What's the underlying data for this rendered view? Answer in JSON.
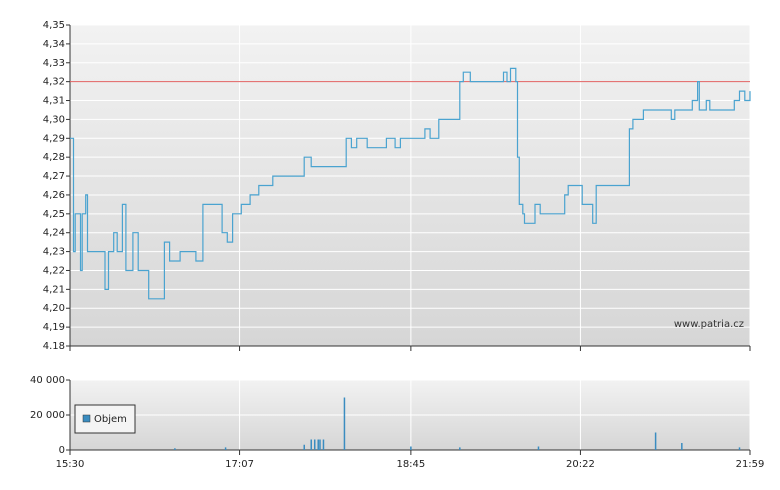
{
  "chart_data": [
    {
      "type": "line",
      "x": [
        "15:30",
        "15:32",
        "15:33",
        "15:36",
        "15:37",
        "15:39",
        "15:40",
        "15:47",
        "15:50",
        "15:52",
        "15:55",
        "15:57",
        "16:00",
        "16:02",
        "16:06",
        "16:09",
        "16:13",
        "16:15",
        "16:21",
        "16:24",
        "16:27",
        "16:33",
        "16:37",
        "16:42",
        "16:46",
        "16:53",
        "16:57",
        "17:00",
        "17:03",
        "17:08",
        "17:13",
        "17:18",
        "17:26",
        "17:42",
        "17:44",
        "17:48",
        "18:06",
        "18:08",
        "18:11",
        "18:14",
        "18:20",
        "18:27",
        "18:31",
        "18:36",
        "18:39",
        "18:53",
        "18:56",
        "19:01",
        "19:11",
        "19:13",
        "19:15",
        "19:19",
        "19:36",
        "19:38",
        "19:40",
        "19:42",
        "19:45",
        "19:46",
        "19:47",
        "19:49",
        "19:50",
        "19:54",
        "19:56",
        "19:59",
        "20:13",
        "20:15",
        "20:22",
        "20:23",
        "20:27",
        "20:29",
        "20:31",
        "20:49",
        "20:50",
        "20:52",
        "20:56",
        "20:58",
        "21:05",
        "21:10",
        "21:14",
        "21:16",
        "21:25",
        "21:26",
        "21:29",
        "21:30",
        "21:34",
        "21:36",
        "21:50",
        "21:53",
        "21:56",
        "21:59"
      ],
      "values": [
        4.29,
        4.23,
        4.25,
        4.22,
        4.25,
        4.26,
        4.23,
        4.23,
        4.21,
        4.23,
        4.24,
        4.23,
        4.255,
        4.22,
        4.24,
        4.22,
        4.22,
        4.205,
        4.205,
        4.235,
        4.225,
        4.23,
        4.23,
        4.225,
        4.255,
        4.255,
        4.24,
        4.235,
        4.25,
        4.255,
        4.26,
        4.265,
        4.27,
        4.27,
        4.28,
        4.275,
        4.275,
        4.29,
        4.285,
        4.29,
        4.285,
        4.285,
        4.29,
        4.285,
        4.29,
        4.295,
        4.29,
        4.3,
        4.3,
        4.32,
        4.325,
        4.32,
        4.32,
        4.325,
        4.32,
        4.327,
        4.32,
        4.28,
        4.255,
        4.25,
        4.245,
        4.245,
        4.255,
        4.25,
        4.26,
        4.265,
        4.265,
        4.255,
        4.255,
        4.245,
        4.265,
        4.265,
        4.295,
        4.3,
        4.3,
        4.305,
        4.305,
        4.305,
        4.3,
        4.305,
        4.305,
        4.31,
        4.32,
        4.305,
        4.31,
        4.305,
        4.31,
        4.315,
        4.31,
        4.315
      ],
      "color": "#4aa3d0",
      "reference_line": {
        "value": 4.32,
        "color": "#e06060"
      },
      "xlim": [
        "15:30",
        "21:59"
      ],
      "xticks": [
        "15:30",
        "17:07",
        "18:45",
        "20:22",
        "21:59"
      ],
      "ylim": [
        4.18,
        4.35
      ],
      "yticks": [
        {
          "value": 4.18,
          "label": "4.18"
        },
        {
          "value": 4.19,
          "label": "4,19"
        },
        {
          "value": 4.2,
          "label": "4,20"
        },
        {
          "value": 4.21,
          "label": "4,21"
        },
        {
          "value": 4.22,
          "label": "4,22"
        },
        {
          "value": 4.23,
          "label": "4,23"
        },
        {
          "value": 4.24,
          "label": "4,24"
        },
        {
          "value": 4.25,
          "label": "4,25"
        },
        {
          "value": 4.26,
          "label": "4,26"
        },
        {
          "value": 4.27,
          "label": "4,27"
        },
        {
          "value": 4.28,
          "label": "4,28"
        },
        {
          "value": 4.29,
          "label": "4,29"
        },
        {
          "value": 4.3,
          "label": "4,30"
        },
        {
          "value": 4.31,
          "label": "4,31"
        },
        {
          "value": 4.32,
          "label": "4,32"
        },
        {
          "value": 4.33,
          "label": "4,33"
        },
        {
          "value": 4.34,
          "label": "4,34"
        },
        {
          "value": 4.35,
          "label": "4,35"
        }
      ],
      "grid": true,
      "watermark": "www.patria.cz"
    },
    {
      "type": "bar",
      "x": [
        "16:30",
        "16:59",
        "17:44",
        "17:48",
        "17:50",
        "17:52",
        "17:53",
        "17:55",
        "18:07",
        "18:45",
        "19:13",
        "19:58",
        "21:05",
        "21:20",
        "21:53"
      ],
      "series": [
        {
          "name": "Objem",
          "color": "#3a8cc0",
          "values": [
            1000,
            1500,
            3000,
            6000,
            6000,
            6000,
            6000,
            6000,
            30000,
            2000,
            1500,
            2000,
            10000,
            4000,
            1500
          ]
        }
      ],
      "xlim": [
        "15:30",
        "21:59"
      ],
      "xticks": [
        "15:30",
        "17:07",
        "18:45",
        "20:22",
        "21:59"
      ],
      "ylim": [
        0,
        40000
      ],
      "yticks": [
        0,
        {
          "value": 20000,
          "label": "20 000"
        },
        {
          "value": 40000,
          "label": "40 000"
        }
      ],
      "grid": true,
      "legend": "left"
    }
  ]
}
